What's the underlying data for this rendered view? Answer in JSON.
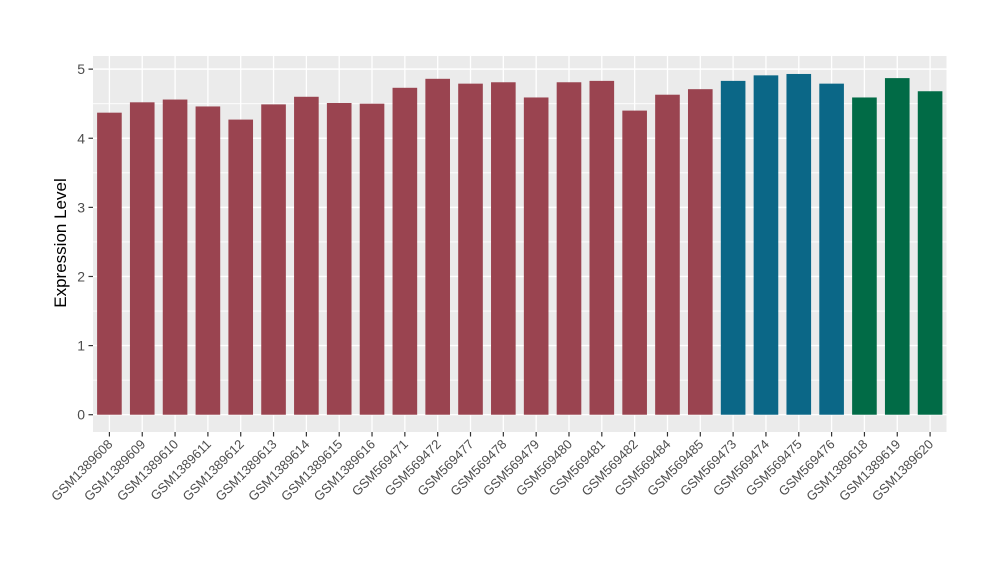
{
  "chart_data": {
    "type": "bar",
    "title": "",
    "ylabel": "Expression Level",
    "xlabel": "",
    "ylim": [
      -0.25,
      5.19
    ],
    "yticks": [
      0,
      1,
      2,
      3,
      4,
      5
    ],
    "grid": true,
    "legend_position": "none",
    "categories": [
      "GSM1389608",
      "GSM1389609",
      "GSM1389610",
      "GSM1389611",
      "GSM1389612",
      "GSM1389613",
      "GSM1389614",
      "GSM1389615",
      "GSM1389616",
      "GSM569471",
      "GSM569472",
      "GSM569477",
      "GSM569478",
      "GSM569479",
      "GSM569480",
      "GSM569481",
      "GSM569482",
      "GSM569484",
      "GSM569485",
      "GSM569473",
      "GSM569474",
      "GSM569475",
      "GSM569476",
      "GSM1389618",
      "GSM1389619",
      "GSM1389620"
    ],
    "values": [
      4.37,
      4.52,
      4.56,
      4.46,
      4.27,
      4.49,
      4.6,
      4.51,
      4.5,
      4.73,
      4.86,
      4.79,
      4.81,
      4.59,
      4.81,
      4.83,
      4.4,
      4.63,
      4.71,
      4.83,
      4.91,
      4.93,
      4.79,
      4.59,
      4.87,
      4.68
    ],
    "group_index": [
      0,
      0,
      0,
      0,
      0,
      0,
      0,
      0,
      0,
      0,
      0,
      0,
      0,
      0,
      0,
      0,
      0,
      0,
      0,
      1,
      1,
      1,
      1,
      2,
      2,
      2
    ],
    "palette": [
      "#9A4450",
      "#0B6787",
      "#016B46"
    ],
    "colors": {
      "panel_bg": "#EBEBEB",
      "grid": "#FFFFFF",
      "tick": "#333333",
      "axis_text": "#4D4D4D",
      "axis_title": "#000000"
    }
  }
}
